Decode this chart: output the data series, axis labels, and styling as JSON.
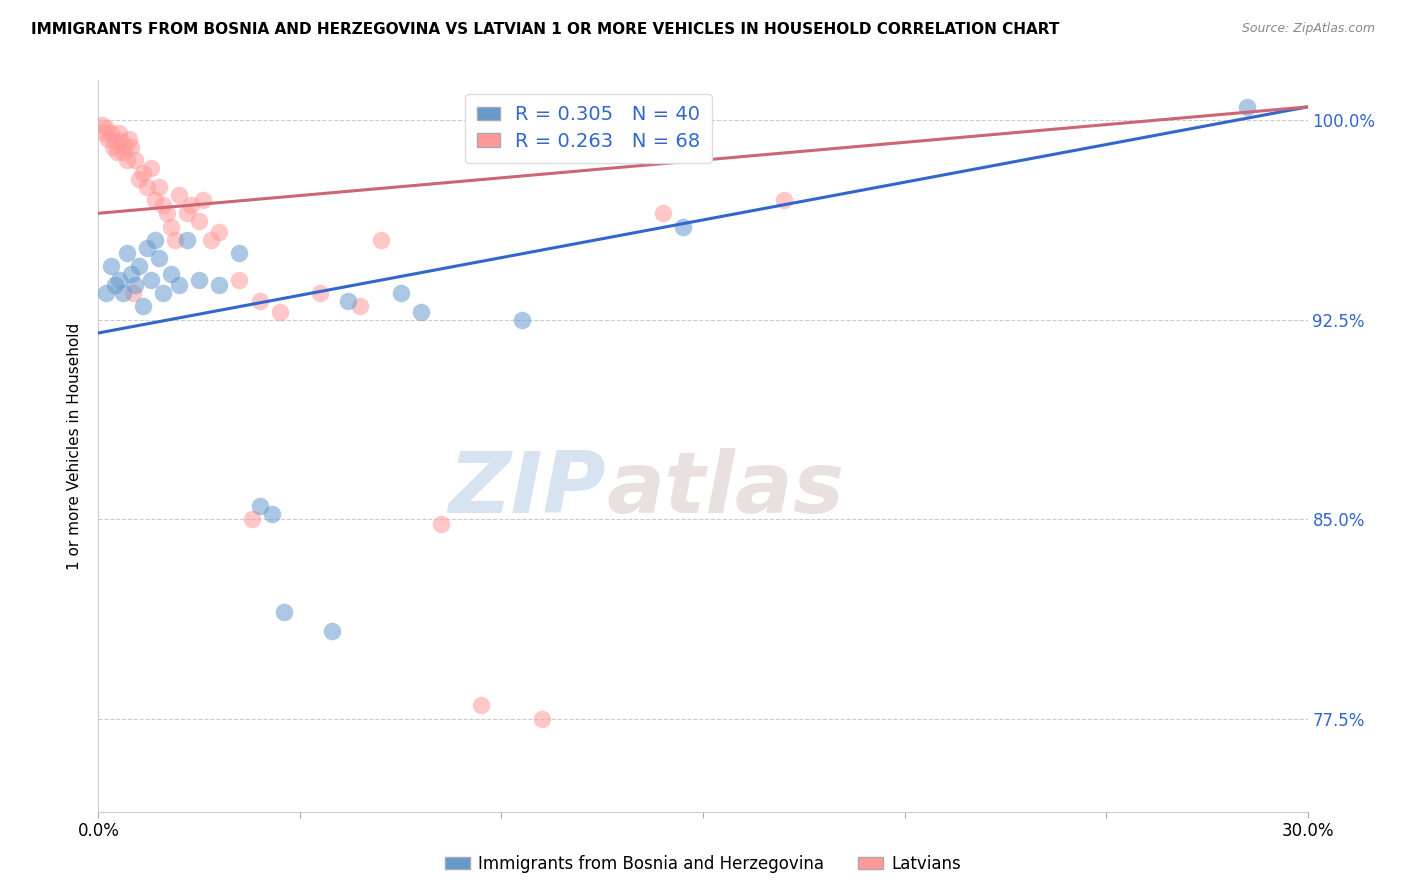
{
  "title": "IMMIGRANTS FROM BOSNIA AND HERZEGOVINA VS LATVIAN 1 OR MORE VEHICLES IN HOUSEHOLD CORRELATION CHART",
  "source": "Source: ZipAtlas.com",
  "ylabel": "1 or more Vehicles in Household",
  "yticks": [
    77.5,
    85.0,
    92.5,
    100.0
  ],
  "ytick_labels": [
    "77.5%",
    "85.0%",
    "92.5%",
    "100.0%"
  ],
  "xmin": 0.0,
  "xmax": 30.0,
  "ymin": 74.0,
  "ymax": 101.5,
  "legend1_label": "R = 0.305   N = 40",
  "legend2_label": "R = 0.263   N = 68",
  "legend_label1_series": "Immigrants from Bosnia and Herzegovina",
  "legend_label2_series": "Latvians",
  "blue_color": "#6699CC",
  "pink_color": "#FF9999",
  "blue_line_color": "#3366CC",
  "pink_line_color": "#CC6677",
  "watermark_zip": "ZIP",
  "watermark_atlas": "atlas",
  "blue_scatter_x": [
    0.2,
    0.3,
    0.4,
    0.5,
    0.6,
    0.7,
    0.8,
    0.9,
    1.0,
    1.1,
    1.2,
    1.3,
    1.4,
    1.5,
    1.6,
    1.8,
    2.0,
    2.2,
    2.5,
    3.0,
    3.5,
    4.0,
    4.3,
    4.6,
    5.8,
    6.2,
    7.5,
    8.0,
    10.5,
    14.5,
    28.5
  ],
  "blue_scatter_y": [
    93.5,
    94.5,
    93.8,
    94.0,
    93.5,
    95.0,
    94.2,
    93.8,
    94.5,
    93.0,
    95.2,
    94.0,
    95.5,
    94.8,
    93.5,
    94.2,
    93.8,
    95.5,
    94.0,
    93.8,
    95.0,
    85.5,
    85.2,
    81.5,
    80.8,
    93.2,
    93.5,
    92.8,
    92.5,
    96.0,
    100.5
  ],
  "pink_scatter_x": [
    0.1,
    0.15,
    0.2,
    0.25,
    0.3,
    0.35,
    0.4,
    0.45,
    0.5,
    0.55,
    0.6,
    0.65,
    0.7,
    0.75,
    0.8,
    0.9,
    1.0,
    1.1,
    1.2,
    1.3,
    1.4,
    1.5,
    1.6,
    1.7,
    1.8,
    1.9,
    2.0,
    2.2,
    2.5,
    2.8,
    3.0,
    3.5,
    4.0,
    4.5,
    5.5,
    6.5,
    7.0,
    8.5,
    9.5,
    11.0,
    14.0,
    17.0,
    2.3,
    2.6,
    0.85,
    3.8
  ],
  "pink_scatter_y": [
    99.8,
    99.5,
    99.7,
    99.3,
    99.5,
    99.0,
    99.2,
    98.8,
    99.5,
    99.2,
    98.8,
    99.0,
    98.5,
    99.3,
    99.0,
    98.5,
    97.8,
    98.0,
    97.5,
    98.2,
    97.0,
    97.5,
    96.8,
    96.5,
    96.0,
    95.5,
    97.2,
    96.5,
    96.2,
    95.5,
    95.8,
    94.0,
    93.2,
    92.8,
    93.5,
    93.0,
    95.5,
    84.8,
    78.0,
    77.5,
    96.5,
    97.0,
    96.8,
    97.0,
    93.5,
    85.0
  ],
  "blue_line_x0": 0.0,
  "blue_line_x1": 30.0,
  "blue_line_y0": 92.0,
  "blue_line_y1": 100.5,
  "pink_line_x0": 0.0,
  "pink_line_x1": 30.0,
  "pink_line_y0": 96.5,
  "pink_line_y1": 100.5
}
